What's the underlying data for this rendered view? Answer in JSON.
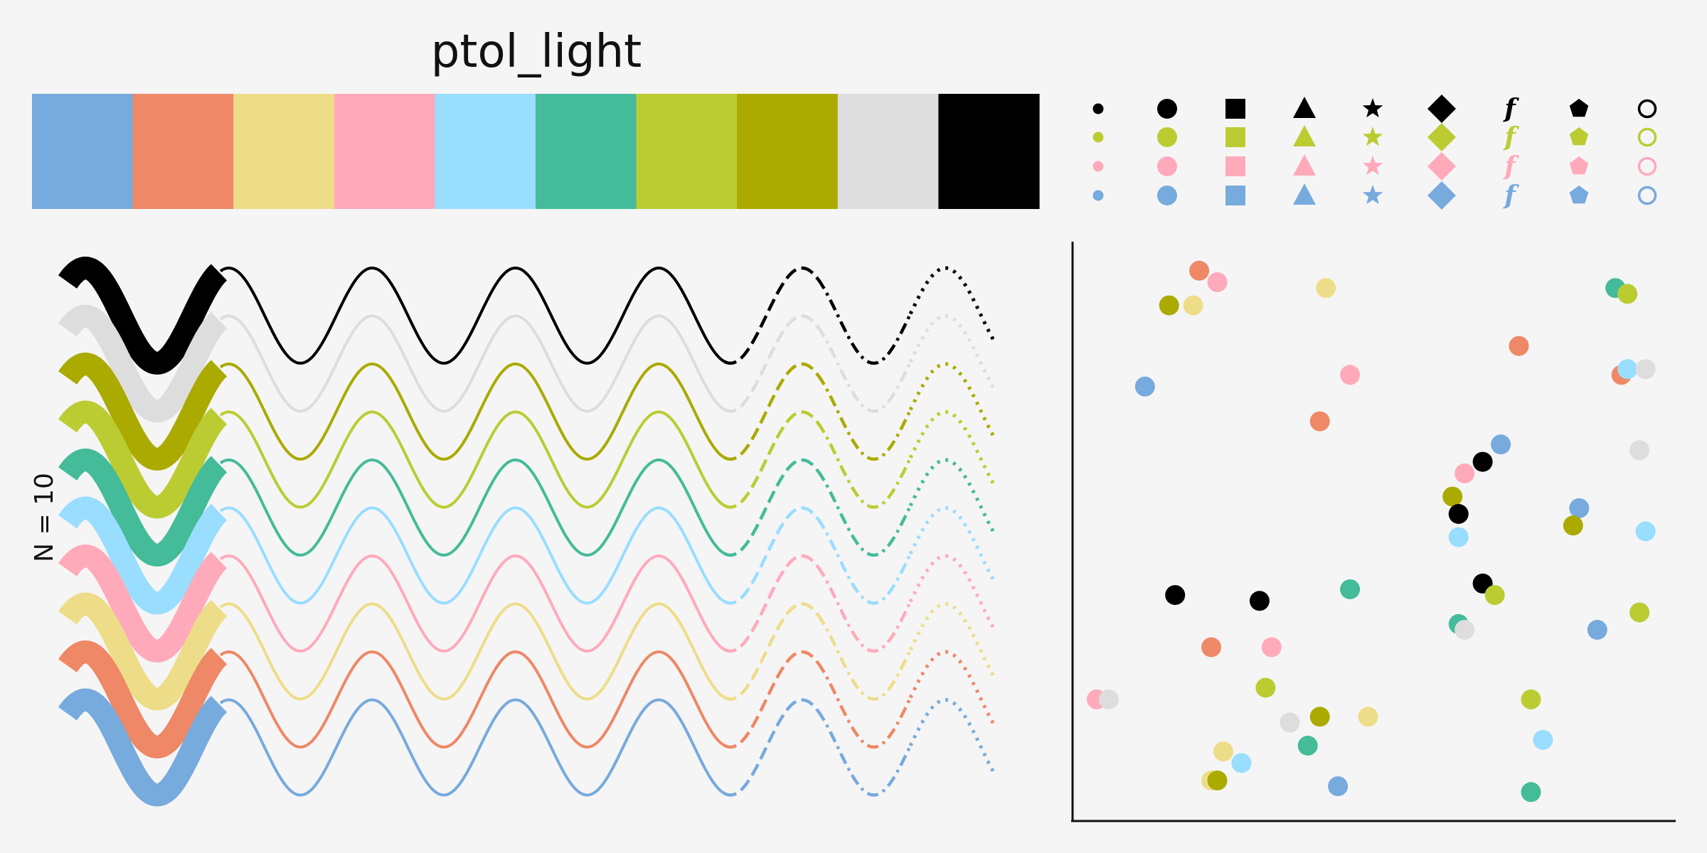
{
  "title": "ptol_light",
  "n_label": "N = 10",
  "palette": [
    "#77aadd",
    "#ee8866",
    "#eedd88",
    "#ffaabb",
    "#99ddff",
    "#44bb99",
    "#bbcc33",
    "#aaaa00",
    "#dddddd",
    "#000000"
  ],
  "marker_legend": {
    "rows": [
      "#000000",
      "#bbcc33",
      "#ffaabb",
      "#77aadd"
    ],
    "markers": [
      "small-circle-icon",
      "circle-icon",
      "square-icon",
      "triangle-icon",
      "star-icon",
      "diamond-icon",
      "f-glyph",
      "pentagon-icon",
      "ring-icon"
    ],
    "glyph_text": "f"
  },
  "chart_data": [
    {
      "type": "line",
      "series_count": 10,
      "function": "sine",
      "line_styles": [
        "thick",
        "solid",
        "dashed",
        "dash-dot",
        "dotted"
      ],
      "series_colors": [
        "#000000",
        "#dddddd",
        "#aaaa00",
        "#bbcc33",
        "#44bb99",
        "#99ddff",
        "#ffaabb",
        "#eedd88",
        "#ee8866",
        "#77aadd"
      ]
    },
    {
      "type": "scatter",
      "xlim": [
        0,
        1
      ],
      "ylim": [
        0,
        1
      ],
      "axes": "left-bottom only, no ticks",
      "points": [
        {
          "x": 0.21,
          "y": 0.95,
          "c": "#ee8866"
        },
        {
          "x": 0.24,
          "y": 0.93,
          "c": "#ffaabb"
        },
        {
          "x": 0.16,
          "y": 0.89,
          "c": "#aaaa00"
        },
        {
          "x": 0.2,
          "y": 0.89,
          "c": "#eedd88"
        },
        {
          "x": 0.42,
          "y": 0.92,
          "c": "#eedd88"
        },
        {
          "x": 0.9,
          "y": 0.92,
          "c": "#44bb99"
        },
        {
          "x": 0.92,
          "y": 0.91,
          "c": "#bbcc33"
        },
        {
          "x": 0.74,
          "y": 0.82,
          "c": "#ee8866"
        },
        {
          "x": 0.46,
          "y": 0.77,
          "c": "#ffaabb"
        },
        {
          "x": 0.12,
          "y": 0.75,
          "c": "#77aadd"
        },
        {
          "x": 0.91,
          "y": 0.77,
          "c": "#ee8866"
        },
        {
          "x": 0.92,
          "y": 0.78,
          "c": "#99ddff"
        },
        {
          "x": 0.95,
          "y": 0.78,
          "c": "#dddddd"
        },
        {
          "x": 0.41,
          "y": 0.69,
          "c": "#ee8866"
        },
        {
          "x": 0.71,
          "y": 0.65,
          "c": "#77aadd"
        },
        {
          "x": 0.68,
          "y": 0.62,
          "c": "#000000"
        },
        {
          "x": 0.65,
          "y": 0.6,
          "c": "#ffaabb"
        },
        {
          "x": 0.94,
          "y": 0.64,
          "c": "#dddddd"
        },
        {
          "x": 0.63,
          "y": 0.56,
          "c": "#aaaa00"
        },
        {
          "x": 0.64,
          "y": 0.53,
          "c": "#000000"
        },
        {
          "x": 0.84,
          "y": 0.54,
          "c": "#77aadd"
        },
        {
          "x": 0.83,
          "y": 0.51,
          "c": "#aaaa00"
        },
        {
          "x": 0.64,
          "y": 0.49,
          "c": "#99ddff"
        },
        {
          "x": 0.95,
          "y": 0.5,
          "c": "#99ddff"
        },
        {
          "x": 0.68,
          "y": 0.41,
          "c": "#000000"
        },
        {
          "x": 0.17,
          "y": 0.39,
          "c": "#000000"
        },
        {
          "x": 0.31,
          "y": 0.38,
          "c": "#000000"
        },
        {
          "x": 0.46,
          "y": 0.4,
          "c": "#44bb99"
        },
        {
          "x": 0.7,
          "y": 0.39,
          "c": "#bbcc33"
        },
        {
          "x": 0.94,
          "y": 0.36,
          "c": "#bbcc33"
        },
        {
          "x": 0.64,
          "y": 0.34,
          "c": "#44bb99"
        },
        {
          "x": 0.65,
          "y": 0.33,
          "c": "#dddddd"
        },
        {
          "x": 0.87,
          "y": 0.33,
          "c": "#77aadd"
        },
        {
          "x": 0.23,
          "y": 0.3,
          "c": "#ee8866"
        },
        {
          "x": 0.33,
          "y": 0.3,
          "c": "#ffaabb"
        },
        {
          "x": 0.32,
          "y": 0.23,
          "c": "#bbcc33"
        },
        {
          "x": 0.04,
          "y": 0.21,
          "c": "#ffaabb"
        },
        {
          "x": 0.06,
          "y": 0.21,
          "c": "#dddddd"
        },
        {
          "x": 0.36,
          "y": 0.17,
          "c": "#dddddd"
        },
        {
          "x": 0.41,
          "y": 0.18,
          "c": "#aaaa00"
        },
        {
          "x": 0.49,
          "y": 0.18,
          "c": "#eedd88"
        },
        {
          "x": 0.76,
          "y": 0.21,
          "c": "#bbcc33"
        },
        {
          "x": 0.39,
          "y": 0.13,
          "c": "#44bb99"
        },
        {
          "x": 0.78,
          "y": 0.14,
          "c": "#99ddff"
        },
        {
          "x": 0.25,
          "y": 0.12,
          "c": "#eedd88"
        },
        {
          "x": 0.28,
          "y": 0.1,
          "c": "#99ddff"
        },
        {
          "x": 0.23,
          "y": 0.07,
          "c": "#eedd88"
        },
        {
          "x": 0.24,
          "y": 0.07,
          "c": "#aaaa00"
        },
        {
          "x": 0.44,
          "y": 0.06,
          "c": "#77aadd"
        },
        {
          "x": 0.76,
          "y": 0.05,
          "c": "#44bb99"
        }
      ]
    }
  ]
}
